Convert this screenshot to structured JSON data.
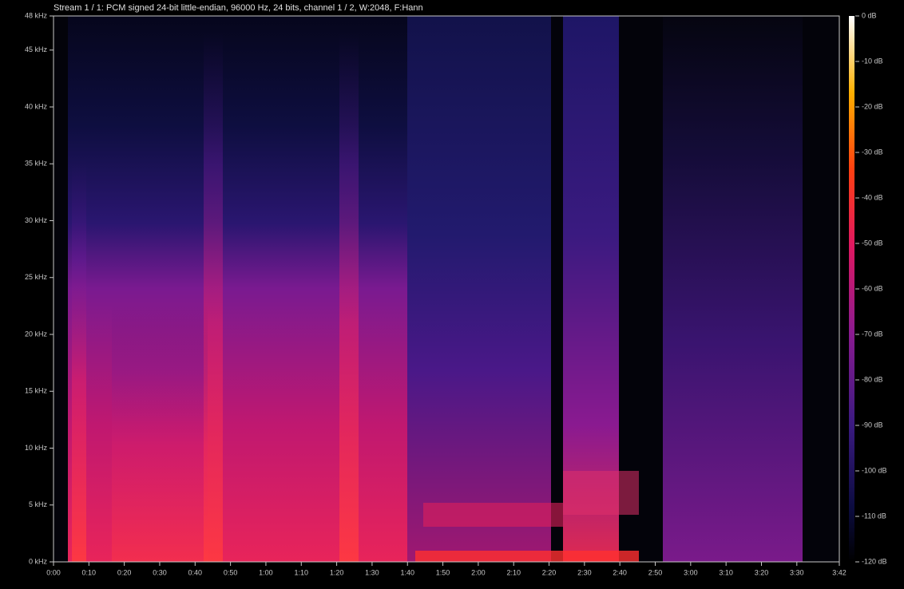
{
  "chart_data": {
    "type": "heatmap",
    "title": "Stream 1 / 1: PCM signed 24-bit little-endian, 96000 Hz, 24 bits, channel 1 / 2, W:2048, F:Hann",
    "xlim": [
      0,
      222
    ],
    "xticks": [
      {
        "value": 0,
        "label": "0:00"
      },
      {
        "value": 10,
        "label": "0:10"
      },
      {
        "value": 20,
        "label": "0:20"
      },
      {
        "value": 30,
        "label": "0:30"
      },
      {
        "value": 40,
        "label": "0:40"
      },
      {
        "value": 50,
        "label": "0:50"
      },
      {
        "value": 60,
        "label": "1:00"
      },
      {
        "value": 70,
        "label": "1:10"
      },
      {
        "value": 80,
        "label": "1:20"
      },
      {
        "value": 90,
        "label": "1:30"
      },
      {
        "value": 100,
        "label": "1:40"
      },
      {
        "value": 110,
        "label": "1:50"
      },
      {
        "value": 120,
        "label": "2:00"
      },
      {
        "value": 130,
        "label": "2:10"
      },
      {
        "value": 140,
        "label": "2:20"
      },
      {
        "value": 150,
        "label": "2:30"
      },
      {
        "value": 160,
        "label": "2:40"
      },
      {
        "value": 170,
        "label": "2:50"
      },
      {
        "value": 180,
        "label": "3:00"
      },
      {
        "value": 190,
        "label": "3:10"
      },
      {
        "value": 200,
        "label": "3:20"
      },
      {
        "value": 210,
        "label": "3:30"
      },
      {
        "value": 222,
        "label": "3:42"
      }
    ],
    "ylim": [
      0,
      48
    ],
    "yticks": [
      {
        "value": 48,
        "label": "48 kHz"
      },
      {
        "value": 45,
        "label": "45 kHz"
      },
      {
        "value": 40,
        "label": "40 kHz"
      },
      {
        "value": 35,
        "label": "35 kHz"
      },
      {
        "value": 30,
        "label": "30 kHz"
      },
      {
        "value": 25,
        "label": "25 kHz"
      },
      {
        "value": 20,
        "label": "20 kHz"
      },
      {
        "value": 15,
        "label": "15 kHz"
      },
      {
        "value": 10,
        "label": "10 kHz"
      },
      {
        "value": 5,
        "label": "5 kHz"
      },
      {
        "value": 0,
        "label": "0 kHz"
      }
    ],
    "colorbar": {
      "lim": [
        -120,
        0
      ],
      "ticks": [
        {
          "value": 0,
          "label": "0 dB"
        },
        {
          "value": -10,
          "label": "-10 dB"
        },
        {
          "value": -20,
          "label": "-20 dB"
        },
        {
          "value": -30,
          "label": "-30 dB"
        },
        {
          "value": -40,
          "label": "-40 dB"
        },
        {
          "value": -50,
          "label": "-50 dB"
        },
        {
          "value": -60,
          "label": "-60 dB"
        },
        {
          "value": -70,
          "label": "-70 dB"
        },
        {
          "value": -80,
          "label": "-80 dB"
        },
        {
          "value": -90,
          "label": "-90 dB"
        },
        {
          "value": -100,
          "label": "-100 dB"
        },
        {
          "value": -110,
          "label": "-110 dB"
        },
        {
          "value": -120,
          "label": "-120 dB"
        }
      ]
    }
  }
}
